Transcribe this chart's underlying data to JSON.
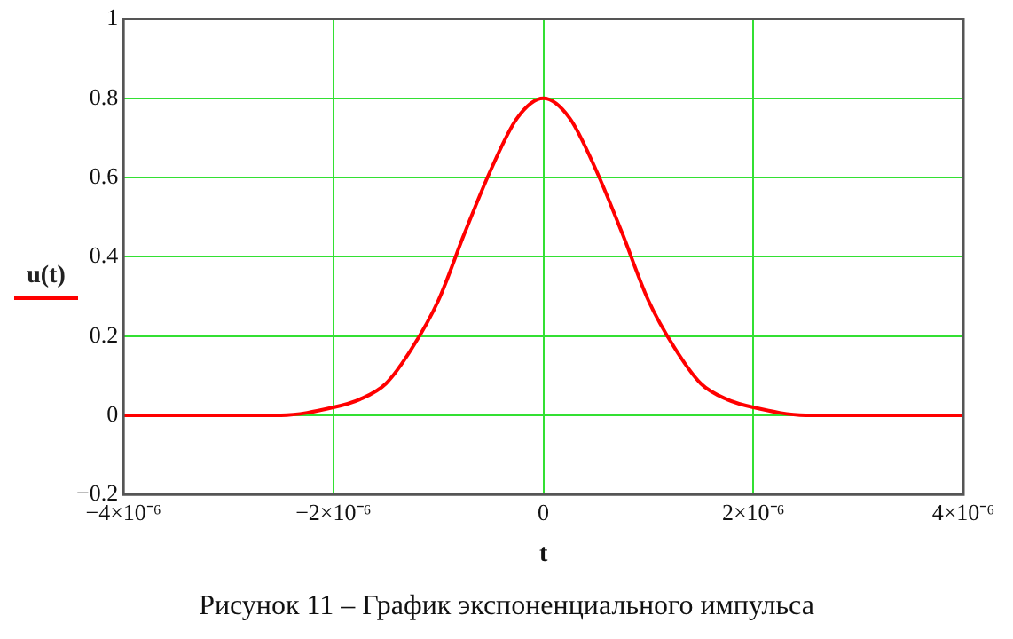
{
  "chart_data": {
    "type": "line",
    "xlabel": "t",
    "annotations": [
      "Рисунок 11 – График экспоненциального импульса"
    ],
    "x": [
      -4e-06,
      -3e-06,
      -2.5e-06,
      -2e-06,
      -1.75e-06,
      -1.5e-06,
      -1.25e-06,
      -1e-06,
      -7.5e-07,
      -5e-07,
      -2.5e-07,
      0,
      2.5e-07,
      5e-07,
      7.5e-07,
      1e-06,
      1.25e-06,
      1.5e-06,
      1.75e-06,
      2e-06,
      2.5e-06,
      3e-06,
      4e-06
    ],
    "series": [
      {
        "name": "u(t)",
        "color": "#ff0000",
        "values": [
          0,
          0,
          0,
          0.02,
          0.04,
          0.08,
          0.17,
          0.29,
          0.46,
          0.62,
          0.75,
          0.8,
          0.75,
          0.62,
          0.46,
          0.29,
          0.17,
          0.08,
          0.04,
          0.02,
          0,
          0,
          0
        ]
      }
    ],
    "xlim": [
      -4e-06,
      4e-06
    ],
    "ylim": [
      -0.2,
      1
    ],
    "xticks": [
      {
        "value": -4e-06,
        "label": "−4×10⁻⁶"
      },
      {
        "value": -2e-06,
        "label": "−2×10⁻⁶"
      },
      0,
      {
        "value": 2e-06,
        "label": "2×10⁻⁶"
      },
      {
        "value": 4e-06,
        "label": "4×10⁻⁶"
      }
    ],
    "yticks": [
      {
        "value": -0.2,
        "label": "−0.2"
      },
      0,
      0.2,
      0.4,
      0.6,
      0.8,
      1
    ],
    "grid": true,
    "legend": "left",
    "marker": "none",
    "line_style": "solid"
  }
}
